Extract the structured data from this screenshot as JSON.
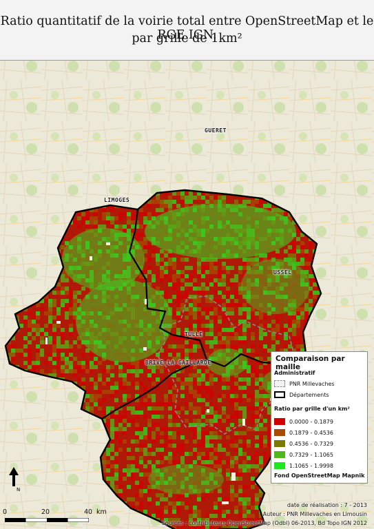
{
  "title": {
    "line1": "Ratio quantitatif de la voirie total entre OpenStreetMap et le RGE IGN.",
    "line2": "par grille de 1km²"
  },
  "cities": {
    "gueret": "GUERET",
    "limoges": "LIMOGES",
    "ussel": "USSEL",
    "tulle": "TULLE",
    "brive": "BRIVE-LA-GAILLARDE"
  },
  "legend": {
    "title": "Comparaison par maille",
    "admin_heading": "Administratif",
    "pnr": "PNR Millevaches",
    "departements": "Départements",
    "ratio_heading": "Ratio par grille d'un km²",
    "classes": [
      {
        "label": "0.0000 - 0.1879",
        "color": "#d40000"
      },
      {
        "label": "0.1879 - 0.4536",
        "color": "#a84a00"
      },
      {
        "label": "0.4536 - 0.7329",
        "color": "#7a7a00"
      },
      {
        "label": "0.7329 - 1.1065",
        "color": "#4fb81a"
      },
      {
        "label": "1.1065 - 1.9998",
        "color": "#1ee81e"
      }
    ],
    "basemap": "Fond OpenStreetMap Mapnik"
  },
  "north": {
    "label": "N"
  },
  "scale": {
    "ticks": [
      "0",
      "20",
      "40"
    ],
    "unit": "km"
  },
  "credits": {
    "date": "date de réalisation : 7 - 2013",
    "author": "Auteur : PNR Millevaches en Limousin",
    "sources": "Sources : contributeurs OpenStreetMap (Odbl) 06-2013, Bd Topo IGN 2012"
  },
  "colors": {
    "background": "#ece9d8",
    "border": "#000000",
    "pnr": "#8c8c8c"
  }
}
